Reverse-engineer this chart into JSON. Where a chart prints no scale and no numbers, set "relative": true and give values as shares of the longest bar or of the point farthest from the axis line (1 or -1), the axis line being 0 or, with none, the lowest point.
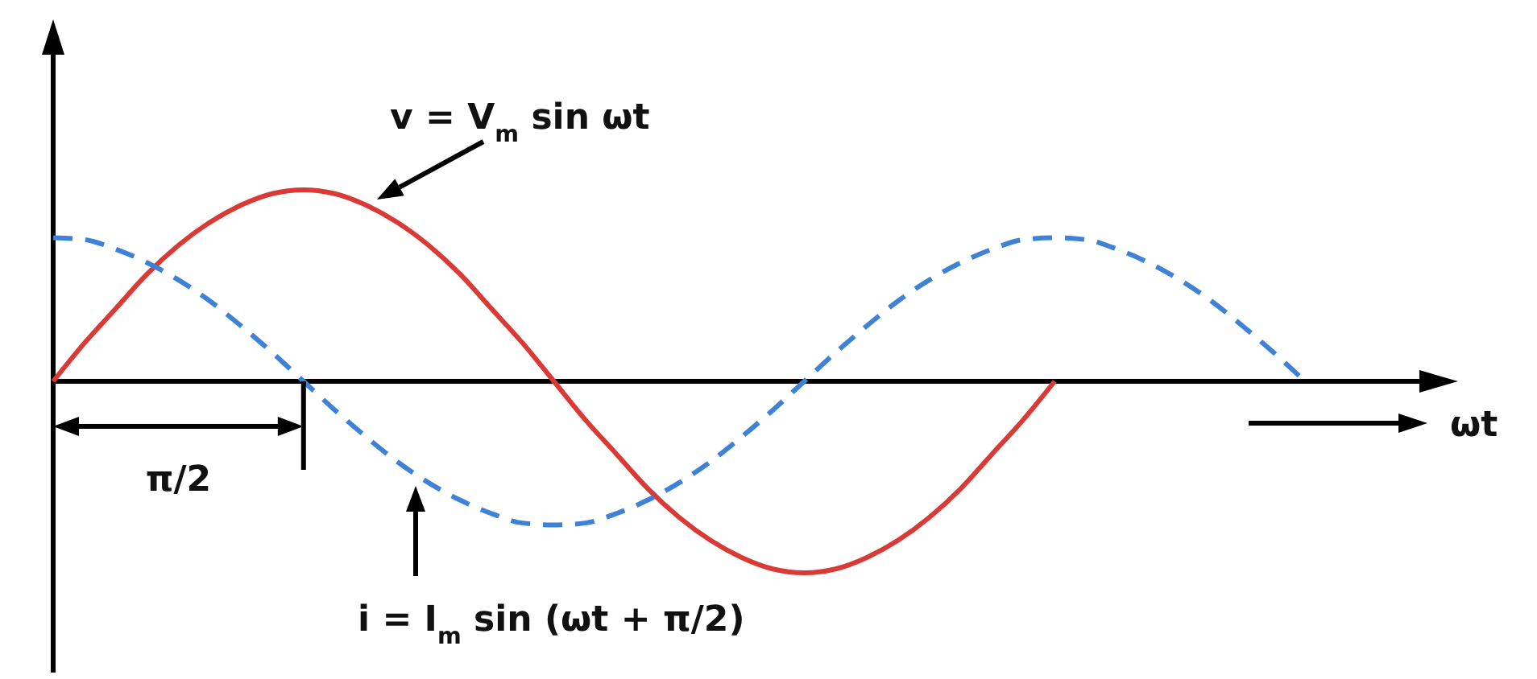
{
  "chart_data": {
    "type": "line",
    "relative": true,
    "xlabel": "ωt",
    "categories": [
      null,
      null,
      null,
      null,
      null,
      null,
      null,
      null,
      null,
      null,
      null,
      null,
      null,
      null,
      null,
      null,
      null,
      null,
      null,
      null,
      null,
      null,
      null,
      null,
      null,
      null,
      null,
      null,
      null,
      null,
      null,
      null,
      null,
      null,
      null,
      null,
      null,
      null,
      null,
      null,
      null
    ],
    "series": [
      {
        "name": "v = V$_{m}$ sin ωt",
        "color": "#d93a35",
        "line_style": "solid",
        "values": [
          0,
          0.2,
          0.38,
          0.56,
          0.71,
          0.83,
          0.92,
          0.98,
          1,
          0.98,
          0.92,
          0.83,
          0.71,
          0.56,
          0.38,
          0.2,
          0,
          -0.2,
          -0.38,
          -0.56,
          -0.71,
          -0.83,
          -0.92,
          -0.98,
          -1,
          -0.98,
          -0.92,
          -0.83,
          -0.71,
          -0.56,
          -0.38,
          -0.2,
          0,
          null,
          null,
          null,
          null,
          null,
          null,
          null,
          null
        ]
      },
      {
        "name": "i = I$_{m}$ sin (ωt + π/2)",
        "color": "#3d82d6",
        "line_style": "dashed",
        "values": [
          0.75,
          0.74,
          0.69,
          0.62,
          0.53,
          0.42,
          0.29,
          0.15,
          0,
          -0.15,
          -0.29,
          -0.42,
          -0.53,
          -0.62,
          -0.69,
          -0.74,
          -0.75,
          -0.74,
          -0.69,
          -0.62,
          -0.53,
          -0.42,
          -0.29,
          -0.15,
          0,
          0.15,
          0.29,
          0.42,
          0.53,
          0.62,
          0.69,
          0.74,
          0.75,
          0.74,
          0.69,
          0.62,
          0.53,
          0.42,
          0.29,
          0.15,
          0
        ]
      }
    ],
    "annotations": [
      "π/2"
    ]
  }
}
